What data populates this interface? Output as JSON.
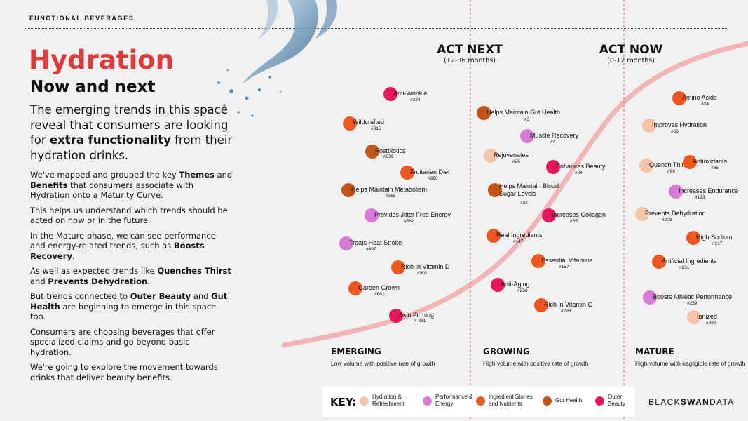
{
  "header": "FUNCTIONAL BEVERAGES",
  "title": "Hydration",
  "subtitle": "Now and next",
  "lead": {
    "part1": "The emerging trends in this space reveal that consumers are looking for ",
    "bold": "extra functionality",
    "part2": " from their hydration drinks."
  },
  "paragraphs": {
    "p1": {
      "a": "We've mapped and grouped the key ",
      "b1": "Themes",
      "c": " and ",
      "b2": "Benefits",
      "d": " that consumers associate with Hydration onto a Maturity Curve."
    },
    "p2": "This helps us understand which trends should be acted on now or in the future.",
    "p3": {
      "a": "In the Mature phase, we can see performance and energy-related trends, such as ",
      "b1": "Boosts Recovery",
      "c": "."
    },
    "p4": {
      "a": "As well as expected trends like ",
      "b1": "Quenches Thirst",
      "c": " and ",
      "b2": "Prevents Dehydration",
      "d": "."
    },
    "p5": {
      "a": "But trends connected to ",
      "b1": "Outer Beauty",
      "c": " and ",
      "b2": "Gut Health",
      "d": " are beginning to emerge in this space too."
    },
    "p6": "Consumers are choosing beverages that offer specialized claims and go beyond basic hydration.",
    "p7": "We're going to explore the movement towards drinks that deliver beauty benefits."
  },
  "phase_heads": {
    "next": {
      "title": "ACT NEXT",
      "sub": "(12-36 months)"
    },
    "now": {
      "title": "ACT NOW",
      "sub": "(0-12 months)"
    }
  },
  "stages": {
    "emerging": {
      "name": "EMERGING",
      "desc": "Low volume with positive rate of growth"
    },
    "growing": {
      "name": "GROWING",
      "desc": "High volume with positive rate of growth"
    },
    "mature": {
      "name": "MATURE",
      "desc": "High volume with negligible rate of growth"
    }
  },
  "colors": {
    "hydration": "#f6c4a6",
    "performance": "#d57bd6",
    "ingredient": "#f0561f",
    "gut": "#c2541a",
    "beauty": "#e8175d",
    "curve": "#f2b5b5",
    "title_red": "#e23a3a",
    "divider_red": "#e06060"
  },
  "key": {
    "title": "KEY:",
    "items": [
      {
        "cat": "hydration",
        "label": "Hydration & Refreshment"
      },
      {
        "cat": "performance",
        "label": "Performance & Energy"
      },
      {
        "cat": "ingredient",
        "label": "Ingredient Stories and Nutrients"
      },
      {
        "cat": "gut",
        "label": "Gut Health"
      },
      {
        "cat": "beauty",
        "label": "Outer Beauty"
      }
    ]
  },
  "chart_data": {
    "type": "scatter",
    "stages": [
      "EMERGING",
      "GROWING",
      "MATURE"
    ],
    "trends": [
      {
        "label": "Anti-Wrinkle",
        "rank": "#224",
        "cat": "beauty",
        "stage": "EMERGING"
      },
      {
        "label": "Wildcrafted",
        "rank": "#315",
        "cat": "ingredient",
        "stage": "EMERGING"
      },
      {
        "label": "Postbiotics",
        "rank": "#339",
        "cat": "gut",
        "stage": "EMERGING"
      },
      {
        "label": "Fruitarian Diet",
        "rank": "#360",
        "cat": "ingredient",
        "stage": "EMERGING"
      },
      {
        "label": "Helps Maintain Metabolism",
        "rank": "#355",
        "cat": "gut",
        "stage": "EMERGING"
      },
      {
        "label": "Provides Jitter Free Energy",
        "rank": "#382",
        "cat": "performance",
        "stage": "EMERGING"
      },
      {
        "label": "Treats Heat Stroke",
        "rank": "#497",
        "cat": "performance",
        "stage": "EMERGING"
      },
      {
        "label": "Rich In Vitamin D",
        "rank": "#502",
        "cat": "ingredient",
        "stage": "EMERGING"
      },
      {
        "label": "Garden Grown",
        "rank": "#602",
        "cat": "ingredient",
        "stage": "EMERGING"
      },
      {
        "label": "Skin Firming",
        "rank": "# 831",
        "cat": "beauty",
        "stage": "EMERGING"
      },
      {
        "label": "Helps Maintain Gut Health",
        "rank": "#3",
        "cat": "gut",
        "stage": "GROWING"
      },
      {
        "label": "Muscle Recovery",
        "rank": "#4",
        "cat": "performance",
        "stage": "GROWING"
      },
      {
        "label": "Rejuvenates",
        "rank": "#26",
        "cat": "hydration",
        "stage": "GROWING"
      },
      {
        "label": "Enhances Beauty",
        "rank": "#24",
        "cat": "beauty",
        "stage": "GROWING"
      },
      {
        "label": "Helps Maintain Blood Sugar Levels",
        "rank": "#32",
        "cat": "gut",
        "stage": "GROWING"
      },
      {
        "label": "Increases Collagen",
        "rank": "#35",
        "cat": "beauty",
        "stage": "GROWING"
      },
      {
        "label": "Real Ingredients",
        "rank": "#147",
        "cat": "ingredient",
        "stage": "GROWING"
      },
      {
        "label": "Essential Vitamins",
        "rank": "#157",
        "cat": "ingredient",
        "stage": "GROWING"
      },
      {
        "label": "Anti-Aging",
        "rank": "#256",
        "cat": "beauty",
        "stage": "GROWING"
      },
      {
        "label": "Rich in Vitamin C",
        "rank": "#298",
        "cat": "ingredient",
        "stage": "GROWING"
      },
      {
        "label": "Amino Acids",
        "rank": "#24",
        "cat": "ingredient",
        "stage": "MATURE"
      },
      {
        "label": "Improves Hydration",
        "rank": "#66",
        "cat": "hydration",
        "stage": "MATURE"
      },
      {
        "label": "Quench Thirst",
        "rank": "#99",
        "cat": "hydration",
        "stage": "MATURE"
      },
      {
        "label": "Antioxidants",
        "rank": "#85",
        "cat": "ingredient",
        "stage": "MATURE"
      },
      {
        "label": "Increases Endurance",
        "rank": "#123",
        "cat": "performance",
        "stage": "MATURE"
      },
      {
        "label": "Prevents Dehydration",
        "rank": "#209",
        "cat": "hydration",
        "stage": "MATURE"
      },
      {
        "label": "High Sodium",
        "rank": "#217",
        "cat": "ingredient",
        "stage": "MATURE"
      },
      {
        "label": "Artificial Ingredients",
        "rank": "#231",
        "cat": "ingredient",
        "stage": "MATURE"
      },
      {
        "label": "Boosts Athletic Performance",
        "rank": "#259",
        "cat": "performance",
        "stage": "MATURE"
      },
      {
        "label": "Ionized",
        "rank": "#280",
        "cat": "hydration",
        "stage": "MATURE"
      }
    ]
  },
  "logo": {
    "a": "BLACK",
    "b": "SWAN",
    "c": "DATA"
  }
}
